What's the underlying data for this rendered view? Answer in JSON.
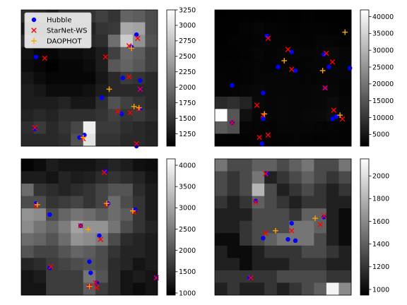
{
  "chart_data": {
    "type": "heatmap",
    "legend": {
      "placement": "top-left of first panel",
      "entries": [
        {
          "key": "hubble",
          "label": "Hubble",
          "marker": "circle",
          "color": "#0000ff"
        },
        {
          "key": "starnet",
          "label": "StarNet-WS",
          "marker": "x",
          "color": "#ff0000"
        },
        {
          "key": "daophot",
          "label": "DAOPHOT",
          "marker": "plus",
          "color": "#ffa500"
        }
      ]
    },
    "panels": [
      {
        "id": "top-left",
        "colorbar": {
          "range": [
            1050,
            3250
          ],
          "ticks": [
            1250,
            1500,
            1750,
            2000,
            2250,
            2500,
            2750,
            3000,
            3250
          ]
        },
        "grid": [
          [
            1450,
            1400,
            1300,
            1500,
            1500,
            1500,
            1600,
            1500,
            1900,
            1850,
            1700
          ],
          [
            1250,
            1200,
            1250,
            1350,
            1350,
            1350,
            1500,
            1550,
            2500,
            2450,
            1700
          ],
          [
            1450,
            1300,
            1300,
            1400,
            1450,
            1400,
            1450,
            2000,
            2800,
            2300,
            1750
          ],
          [
            1200,
            1100,
            1100,
            1150,
            1150,
            1200,
            1300,
            1600,
            1950,
            1850,
            1600
          ],
          [
            1150,
            1100,
            1050,
            1100,
            1100,
            1150,
            1300,
            1800,
            1900,
            1800,
            1600
          ],
          [
            1250,
            1150,
            1100,
            1100,
            1100,
            1100,
            1250,
            1400,
            1550,
            1500,
            1400
          ],
          [
            1300,
            1250,
            1150,
            1150,
            1150,
            1200,
            1300,
            1400,
            1400,
            1400,
            1400
          ],
          [
            1300,
            1300,
            1300,
            1350,
            1250,
            1250,
            1450,
            1750,
            1600,
            1500,
            1400
          ],
          [
            1350,
            1400,
            1350,
            1450,
            1450,
            1450,
            1500,
            1600,
            1500,
            1550,
            1450
          ],
          [
            1450,
            1550,
            1400,
            1500,
            1650,
            3100,
            1550,
            1550,
            1450,
            1400,
            1350
          ],
          [
            1400,
            1400,
            1400,
            1450,
            1750,
            3000,
            1500,
            1500,
            1400,
            1400,
            1350
          ]
        ],
        "hubble": [
          [
            0.7,
            3.3
          ],
          [
            8.8,
            1.5
          ],
          [
            8.4,
            2.5
          ],
          [
            7.7,
            5.0
          ],
          [
            9.1,
            5.2
          ],
          [
            9.1,
            5.9
          ],
          [
            6.0,
            6.6
          ],
          [
            9.1,
            7.5
          ],
          [
            7.6,
            7.9
          ],
          [
            0.6,
            9.1
          ],
          [
            4.6,
            9.6
          ],
          [
            4.2,
            9.8
          ],
          [
            8.8,
            10.5
          ]
        ],
        "starnet": [
          [
            1.4,
            3.4
          ],
          [
            8.9,
            1.8
          ],
          [
            8.2,
            2.4
          ],
          [
            6.3,
            3.3
          ],
          [
            8.2,
            4.9
          ],
          [
            9.1,
            5.9
          ],
          [
            7.3,
            7.7
          ],
          [
            8.3,
            7.8
          ],
          [
            9.0,
            7.5
          ],
          [
            0.6,
            9.0
          ],
          [
            4.5,
            9.9
          ],
          [
            8.8,
            10.3
          ]
        ],
        "daophot": [
          [
            8.4,
            2.6
          ],
          [
            6.6,
            5.9
          ],
          [
            8.6,
            7.3
          ],
          [
            9.0,
            7.4
          ],
          [
            4.5,
            9.8
          ]
        ]
      },
      {
        "id": "top-right",
        "colorbar": {
          "range": [
            1500,
            42000
          ],
          "ticks": [
            5000,
            10000,
            15000,
            20000,
            25000,
            30000,
            35000,
            40000
          ]
        },
        "grid": [
          [
            1500,
            1600,
            1700,
            1600,
            1700,
            1800,
            1700,
            1800,
            1700,
            1600,
            1600
          ],
          [
            1600,
            1700,
            2200,
            2400,
            2100,
            2000,
            1800,
            1900,
            2000,
            1800,
            1700
          ],
          [
            1700,
            1900,
            2000,
            2200,
            2300,
            2200,
            2200,
            2000,
            2400,
            2300,
            1900
          ],
          [
            1800,
            1800,
            2000,
            2500,
            2200,
            2400,
            2500,
            2300,
            2500,
            3000,
            2400
          ],
          [
            1900,
            2000,
            2200,
            2300,
            2100,
            2300,
            2200,
            2300,
            2400,
            2600,
            2400
          ],
          [
            2100,
            2000,
            2200,
            2500,
            2300,
            2400,
            2300,
            2300,
            2300,
            2400,
            2300
          ],
          [
            2200,
            2300,
            2500,
            2700,
            2400,
            2500,
            2500,
            2400,
            2600,
            2600,
            2200
          ],
          [
            8000,
            9000,
            7000,
            3000,
            2500,
            2600,
            2400,
            2500,
            2600,
            3200,
            2400
          ],
          [
            42000,
            15000,
            4000,
            2500,
            2400,
            2600,
            2500,
            2700,
            3000,
            3500,
            2600
          ],
          [
            16000,
            14000,
            2500,
            2300,
            2100,
            2400,
            2400,
            2400,
            2300,
            2300,
            2100
          ],
          [
            2100,
            2000,
            1900,
            2000,
            2100,
            2200,
            2300,
            2100,
            2000,
            2100,
            2000
          ]
        ],
        "hubble": [
          [
            3.7,
            1.6
          ],
          [
            5.7,
            2.9
          ],
          [
            8.3,
            3.1
          ],
          [
            4.6,
            4.1
          ],
          [
            6.0,
            4.4
          ],
          [
            10.4,
            4.2
          ],
          [
            8.7,
            4.1
          ],
          [
            0.9,
            5.6
          ],
          [
            3.4,
            6.2
          ],
          [
            8.4,
            5.8
          ],
          [
            3.4,
            8.3
          ],
          [
            9.0,
            8.3
          ],
          [
            9.3,
            8.1
          ],
          [
            0.9,
            8.6
          ],
          [
            3.3,
            10.3
          ]
        ],
        "starnet": [
          [
            3.8,
            1.8
          ],
          [
            5.4,
            2.7
          ],
          [
            8.5,
            3.0
          ],
          [
            9.0,
            3.7
          ],
          [
            5.7,
            4.3
          ],
          [
            8.4,
            5.8
          ],
          [
            2.9,
            7.2
          ],
          [
            9.1,
            7.6
          ],
          [
            3.4,
            8.0
          ],
          [
            9.8,
            8.3
          ],
          [
            0.9,
            8.6
          ],
          [
            3.1,
            9.8
          ],
          [
            3.8,
            9.6
          ]
        ],
        "daophot": [
          [
            10.0,
            1.3
          ],
          [
            5.1,
            3.6
          ],
          [
            8.2,
            4.4
          ],
          [
            3.5,
            7.9
          ],
          [
            9.6,
            8.0
          ]
        ]
      },
      {
        "id": "bottom-left",
        "colorbar": {
          "range": [
            950,
            4150
          ],
          "ticks": [
            1000,
            1500,
            2000,
            2500,
            3000,
            3500,
            4000
          ]
        },
        "grid": [
          [
            1000,
            1100,
            1300,
            1200,
            1200,
            1200,
            1300,
            1400,
            1300,
            1150,
            1100
          ],
          [
            1300,
            1300,
            1200,
            1400,
            1300,
            1350,
            1500,
            1600,
            1500,
            1400,
            1200
          ],
          [
            2300,
            1600,
            1500,
            1400,
            1500,
            1600,
            1800,
            2000,
            2000,
            1500,
            1300
          ],
          [
            1900,
            1900,
            1600,
            1700,
            1800,
            1600,
            1800,
            2300,
            1900,
            1600,
            1300
          ],
          [
            2800,
            2700,
            1900,
            2200,
            2400,
            2300,
            2100,
            2300,
            2100,
            1600,
            1300
          ],
          [
            2700,
            2400,
            2200,
            2500,
            3000,
            2800,
            2800,
            2400,
            1900,
            1600,
            1400
          ],
          [
            2300,
            2200,
            2000,
            2300,
            2800,
            2700,
            2500,
            1900,
            1500,
            1400,
            1300
          ],
          [
            2000,
            1800,
            1800,
            2000,
            2200,
            2100,
            1900,
            1600,
            1400,
            1400,
            1300
          ],
          [
            1400,
            1500,
            1700,
            1800,
            1900,
            2000,
            1900,
            1500,
            1400,
            1200,
            1300
          ],
          [
            1200,
            1300,
            1700,
            1700,
            1700,
            2400,
            2000,
            1500,
            1200,
            1300,
            1200
          ],
          [
            1200,
            1200,
            1700,
            1700,
            1700,
            2100,
            1700,
            1500,
            1200,
            1100,
            1200
          ]
        ],
        "hubble": [
          [
            6.3,
            0.5
          ],
          [
            6.5,
            3.1
          ],
          [
            0.7,
            3.1
          ],
          [
            1.8,
            4.0
          ],
          [
            4.3,
            4.9
          ],
          [
            8.7,
            3.6
          ],
          [
            5.8,
            5.7
          ],
          [
            5.0,
            7.8
          ],
          [
            1.8,
            8.3
          ],
          [
            5.1,
            8.7
          ],
          [
            10.4,
            9.1
          ],
          [
            5.6,
            9.5
          ],
          [
            5.0,
            9.8
          ]
        ],
        "starnet": [
          [
            6.2,
            0.6
          ],
          [
            6.4,
            3.2
          ],
          [
            0.7,
            3.3
          ],
          [
            4.3,
            4.9
          ],
          [
            8.6,
            3.8
          ],
          [
            5.9,
            6.0
          ],
          [
            1.9,
            8.2
          ],
          [
            10.4,
            9.1
          ],
          [
            5.5,
            9.5
          ],
          [
            5.0,
            9.8
          ],
          [
            5.6,
            9.9
          ]
        ],
        "daophot": [
          [
            0.8,
            3.2
          ],
          [
            4.9,
            5.2
          ],
          [
            6.4,
            3.1
          ],
          [
            8.5,
            3.7
          ],
          [
            5.0,
            9.8
          ]
        ]
      },
      {
        "id": "bottom-right",
        "colorbar": {
          "range": [
            950,
            2150
          ],
          "ticks": [
            1000,
            1200,
            1400,
            1600,
            1800,
            2000
          ]
        },
        "grid": [
          [
            1500,
            1300,
            1300,
            1400,
            1400,
            1300,
            1400,
            1500,
            1300,
            1300,
            1500
          ],
          [
            1300,
            1200,
            1300,
            1500,
            1100,
            1200,
            1300,
            1400,
            1300,
            1200,
            1300
          ],
          [
            1300,
            1200,
            1300,
            1800,
            1300,
            1100,
            1200,
            1300,
            1200,
            1100,
            1200
          ],
          [
            1200,
            1100,
            1200,
            1400,
            1300,
            1200,
            1100,
            1200,
            1200,
            1100,
            1100
          ],
          [
            1100,
            1100,
            1100,
            1300,
            1300,
            1300,
            1200,
            1400,
            1400,
            1100,
            1000
          ],
          [
            1100,
            1100,
            1200,
            1300,
            1300,
            1300,
            1500,
            1500,
            1400,
            1100,
            1000
          ],
          [
            1000,
            1000,
            1200,
            1300,
            1400,
            1500,
            1500,
            1500,
            1300,
            1100,
            1000
          ],
          [
            1100,
            1000,
            1000,
            1100,
            1200,
            1200,
            1200,
            1300,
            1300,
            1200,
            1100
          ],
          [
            1100,
            1100,
            1000,
            1100,
            1100,
            1100,
            1200,
            1200,
            1200,
            1100,
            1100
          ],
          [
            1200,
            1200,
            1200,
            1200,
            1200,
            1300,
            1300,
            1300,
            1300,
            1200,
            1200
          ],
          [
            1100,
            1200,
            1100,
            1100,
            1200,
            1100,
            1200,
            1300,
            1400,
            2100,
            1600
          ]
        ],
        "hubble": [
          [
            3.7,
            0.7
          ],
          [
            2.8,
            2.9
          ],
          [
            8.3,
            4.2
          ],
          [
            5.7,
            4.7
          ],
          [
            3.4,
            5.9
          ],
          [
            5.4,
            6.0
          ],
          [
            6.0,
            6.1
          ],
          [
            2.3,
            9.1
          ]
        ],
        "starnet": [
          [
            3.6,
            0.7
          ],
          [
            2.8,
            3.0
          ],
          [
            8.3,
            4.1
          ],
          [
            8.0,
            4.8
          ],
          [
            5.7,
            5.3
          ],
          [
            3.6,
            5.5
          ],
          [
            2.4,
            9.1
          ]
        ],
        "daophot": [
          [
            7.6,
            4.3
          ],
          [
            4.4,
            5.3
          ]
        ]
      }
    ]
  }
}
